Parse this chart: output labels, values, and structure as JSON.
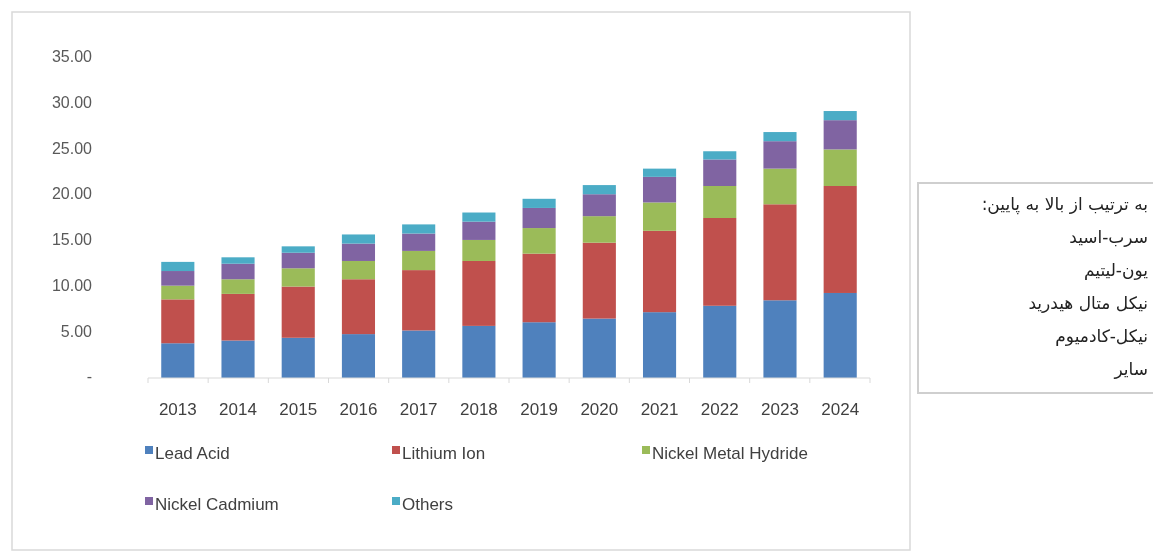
{
  "chart_data": {
    "type": "bar",
    "stacked": true,
    "categories": [
      "2013",
      "2014",
      "2015",
      "2016",
      "2017",
      "2018",
      "2019",
      "2020",
      "2021",
      "2022",
      "2023",
      "2024"
    ],
    "series": [
      {
        "name": "Lead Acid",
        "color": "#4f81bd",
        "values": [
          3.8,
          4.1,
          4.4,
          4.8,
          5.2,
          5.7,
          6.1,
          6.5,
          7.2,
          7.9,
          8.5,
          9.3
        ]
      },
      {
        "name": "Lithium Ion",
        "color": "#c0504d",
        "values": [
          4.8,
          5.1,
          5.6,
          6.0,
          6.6,
          7.1,
          7.5,
          8.3,
          8.9,
          9.6,
          10.5,
          11.7
        ]
      },
      {
        "name": "Nickel Metal Hydride",
        "color": "#9bbb59",
        "values": [
          1.5,
          1.6,
          2.0,
          2.0,
          2.1,
          2.3,
          2.8,
          2.9,
          3.1,
          3.5,
          3.9,
          4.0
        ]
      },
      {
        "name": "Nickel Cadmium",
        "color": "#8064a2",
        "values": [
          1.6,
          1.7,
          1.7,
          1.9,
          1.9,
          2.0,
          2.2,
          2.4,
          2.8,
          2.9,
          3.0,
          3.2
        ]
      },
      {
        "name": "Others",
        "color": "#4bacc6",
        "values": [
          1.0,
          0.7,
          0.7,
          1.0,
          1.0,
          1.0,
          1.0,
          1.0,
          0.9,
          0.9,
          1.0,
          1.0
        ]
      }
    ],
    "ylim": [
      0,
      35
    ],
    "yticks": [
      {
        "value": 0,
        "label": "-"
      },
      {
        "value": 5,
        "label": "5.00"
      },
      {
        "value": 10,
        "label": "10.00"
      },
      {
        "value": 15,
        "label": "15.00"
      },
      {
        "value": 20,
        "label": "20.00"
      },
      {
        "value": 25,
        "label": "25.00"
      },
      {
        "value": 30,
        "label": "30.00"
      },
      {
        "value": 35,
        "label": "35.00"
      }
    ],
    "grid": false,
    "legend": "bottom",
    "annotations": [
      "به ترتیب از بالا به پایین:\nسرب-اسید\nیون-لیتیم\nنیکل متال هیدرید\nنیکل-کادمیوم\nسایر"
    ]
  }
}
